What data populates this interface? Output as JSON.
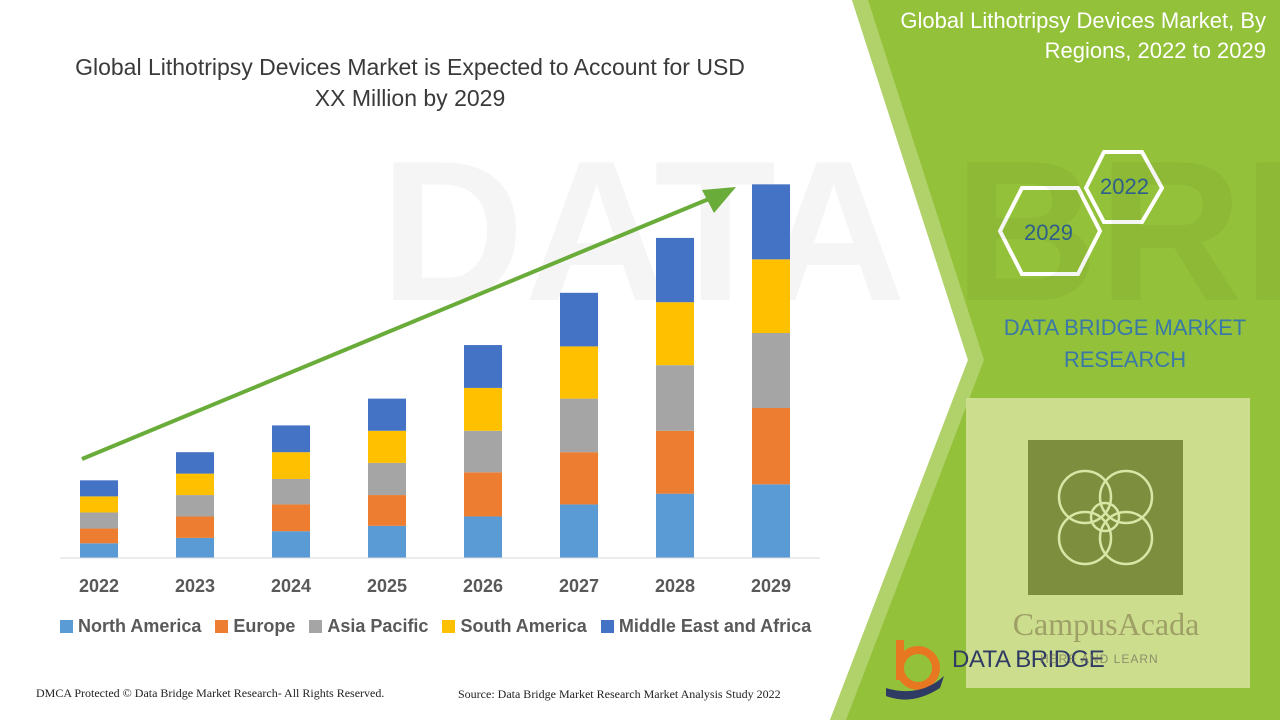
{
  "title": "Global Lithotripsy Devices Market is Expected to Account for USD XX Million by 2029",
  "side_panel": {
    "title": "Global Lithotripsy Devices Market, By Regions, 2022 to 2029",
    "hex_labels": [
      "2022",
      "2029"
    ],
    "brand": "DATA BRIDGE MARKET RESEARCH"
  },
  "footer": {
    "left": "DMCA Protected © Data Bridge Market Research- All Rights Reserved.",
    "right": "Source: Data Bridge Market Research Market Analysis Study 2022"
  },
  "watermark": {
    "text": "CampusAcada",
    "subtext": "HERE AND LEARN"
  },
  "logo": {
    "text": "DATA BRIDGE"
  },
  "colors": {
    "panel_green": "#93c13a",
    "panel_dark_green": "#7ea43a",
    "arrow_green": "#6aac3a"
  },
  "chart_data": {
    "type": "bar",
    "stacked": true,
    "categories": [
      "2022",
      "2023",
      "2024",
      "2025",
      "2026",
      "2027",
      "2028",
      "2029"
    ],
    "series": [
      {
        "name": "North America",
        "color": "#5b9bd5",
        "values": [
          1.1,
          1.5,
          2.0,
          2.4,
          3.1,
          4.0,
          4.8,
          5.5
        ]
      },
      {
        "name": "Europe",
        "color": "#ed7d31",
        "values": [
          1.1,
          1.6,
          2.0,
          2.3,
          3.3,
          3.9,
          4.7,
          5.7
        ]
      },
      {
        "name": "Asia Pacific",
        "color": "#a5a5a5",
        "values": [
          1.2,
          1.6,
          1.9,
          2.4,
          3.1,
          4.0,
          4.9,
          5.6
        ]
      },
      {
        "name": "South America",
        "color": "#ffc000",
        "values": [
          1.2,
          1.6,
          2.0,
          2.4,
          3.2,
          3.9,
          4.7,
          5.5
        ]
      },
      {
        "name": "Middle East and Africa",
        "color": "#4472c4",
        "values": [
          1.2,
          1.6,
          2.0,
          2.4,
          3.2,
          4.0,
          4.8,
          5.6
        ]
      }
    ],
    "ylim": [
      0,
      28
    ],
    "legend_position": "bottom",
    "grid": false
  }
}
